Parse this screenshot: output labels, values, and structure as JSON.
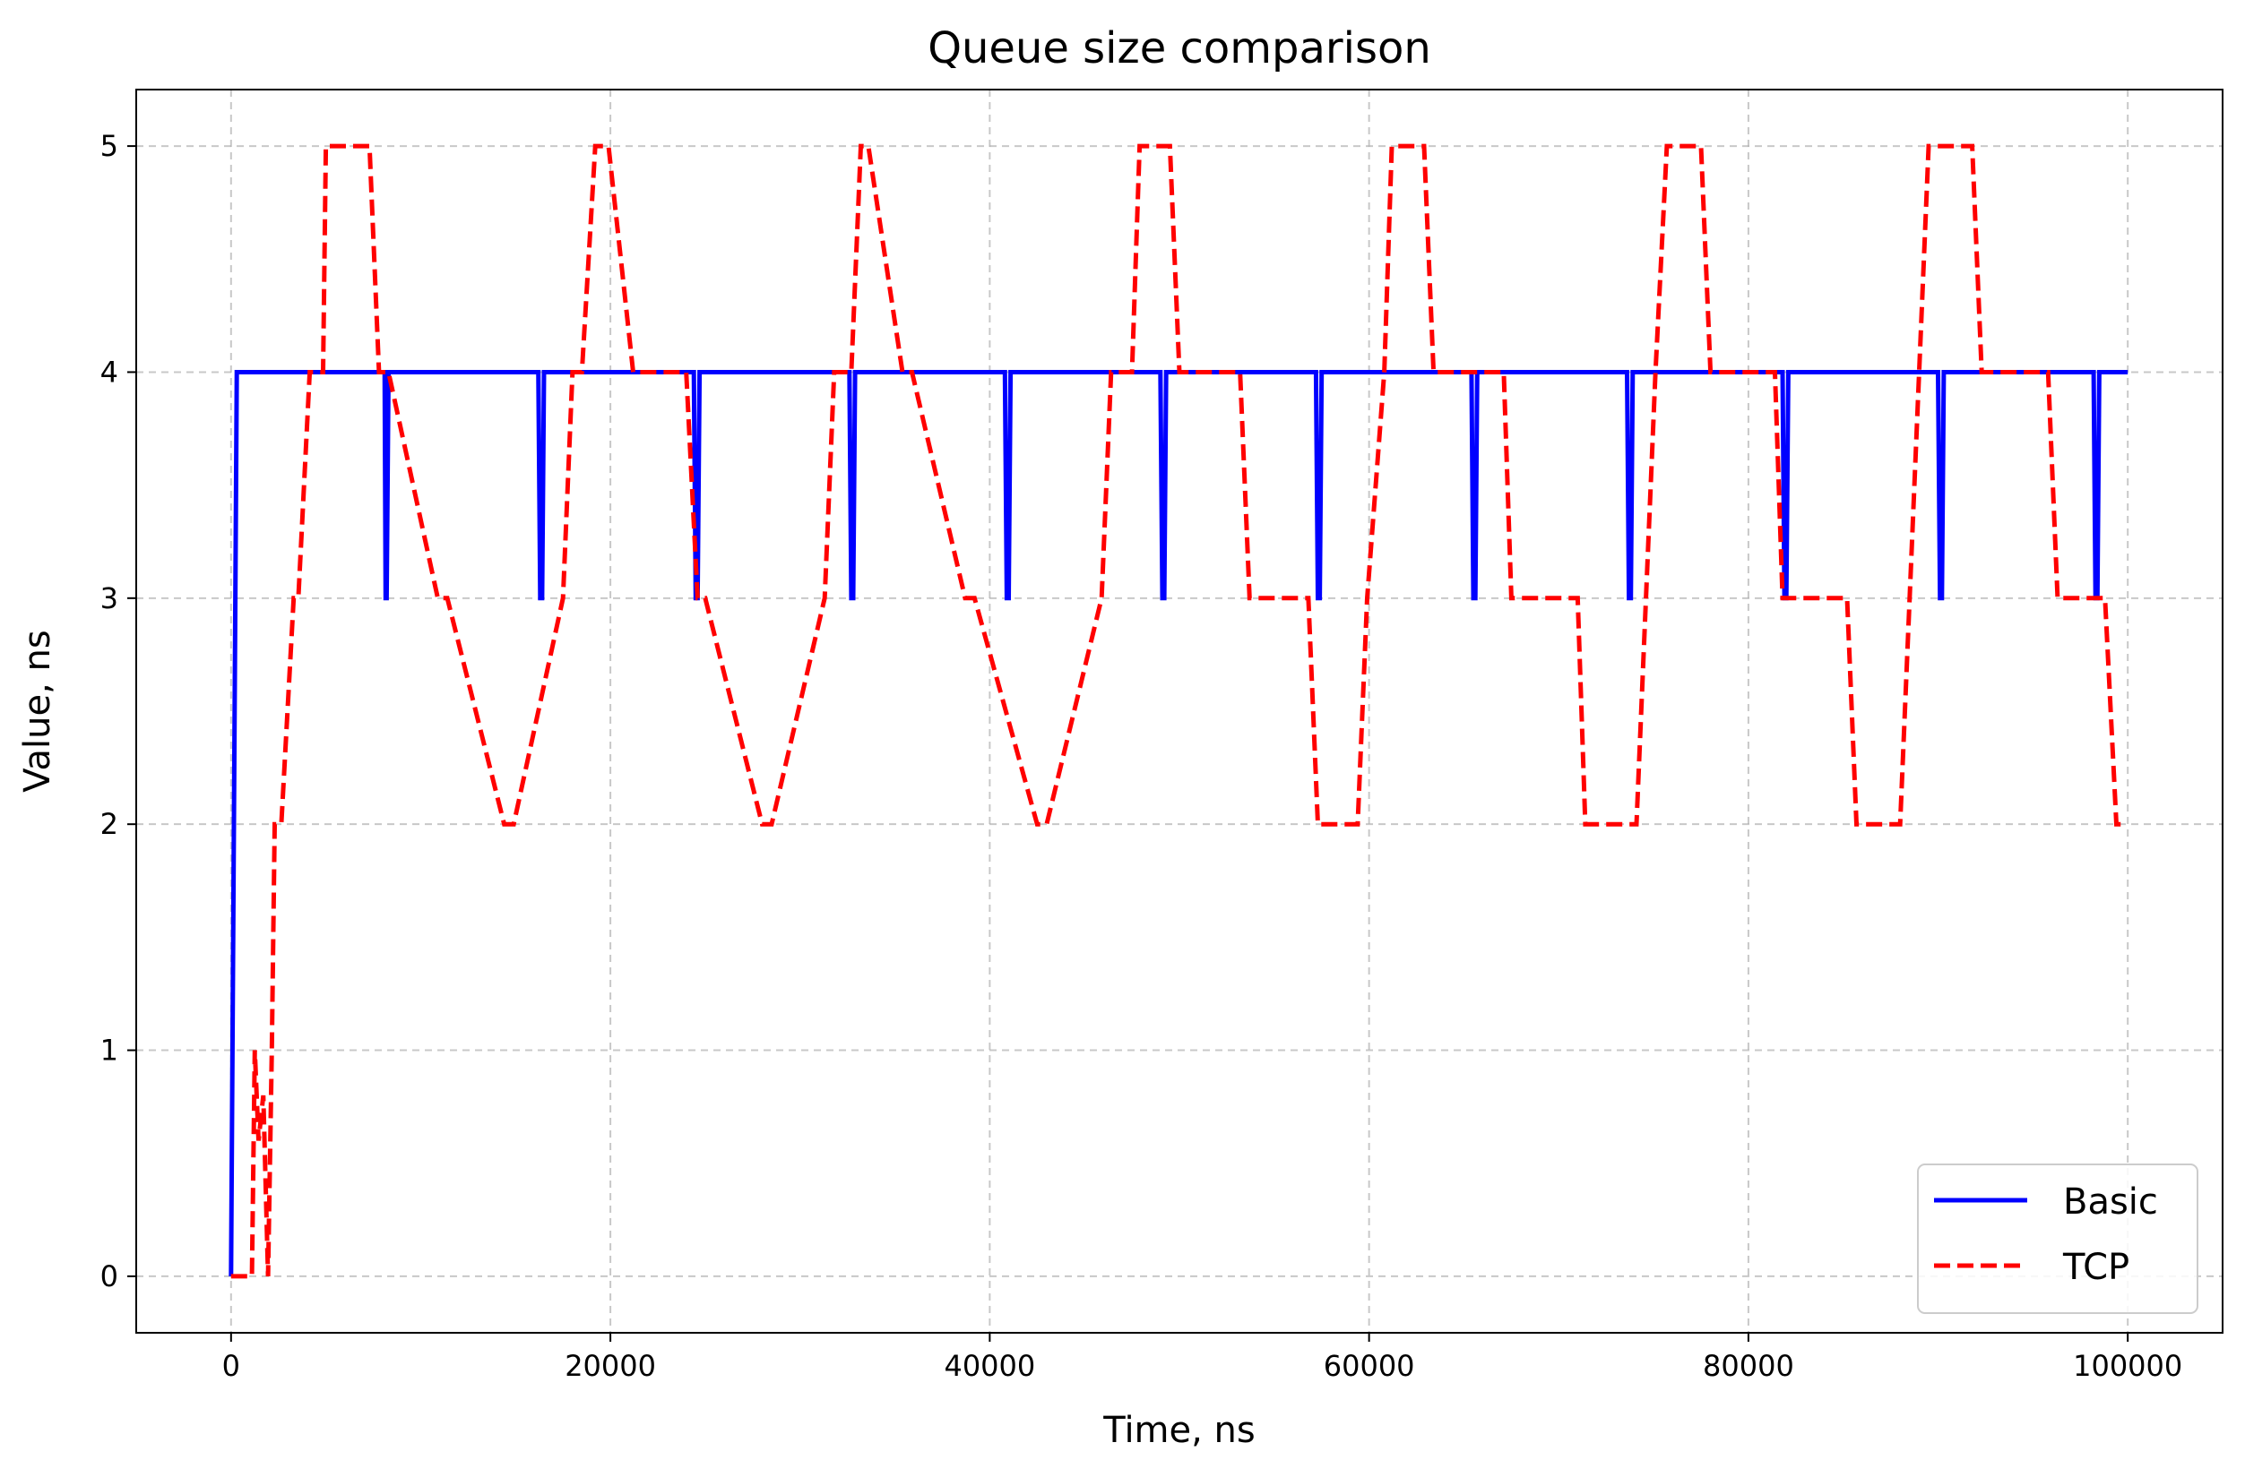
{
  "chart_data": {
    "type": "line",
    "title": "Queue size comparison",
    "xlabel": "Time, ns",
    "ylabel": "Value, ns",
    "xlim": [
      -5000,
      105000
    ],
    "ylim": [
      -0.25,
      5.25
    ],
    "xticks": [
      0,
      20000,
      40000,
      60000,
      80000,
      100000
    ],
    "yticks": [
      0,
      1,
      2,
      3,
      4,
      5
    ],
    "grid": true,
    "legend_position": "lower right",
    "series": [
      {
        "name": "Basic",
        "color": "#0000ff",
        "style": "solid",
        "x": [
          0,
          300,
          400,
          8100,
          8150,
          8200,
          8300,
          16200,
          16300,
          16400,
          16500,
          24400,
          24500,
          24600,
          24700,
          32600,
          32700,
          32800,
          32900,
          40800,
          40900,
          41000,
          41100,
          49000,
          49100,
          49200,
          49300,
          57200,
          57300,
          57400,
          57500,
          65400,
          65500,
          65600,
          65700,
          73600,
          73700,
          73800,
          73900,
          81800,
          81900,
          82000,
          82100,
          90000,
          90100,
          90200,
          90300,
          98200,
          98300,
          98400,
          98500,
          100000
        ],
        "y": [
          0,
          4,
          4,
          4,
          3,
          3,
          4,
          4,
          3,
          3,
          4,
          4,
          3,
          3,
          4,
          4,
          3,
          3,
          4,
          4,
          3,
          3,
          4,
          4,
          3,
          3,
          4,
          4,
          3,
          3,
          4,
          4,
          3,
          3,
          4,
          4,
          3,
          3,
          4,
          4,
          3,
          3,
          4,
          4,
          3,
          3,
          4,
          4,
          3,
          3,
          4,
          4
        ]
      },
      {
        "name": "TCP",
        "color": "#ff0000",
        "style": "dashed",
        "x": [
          0,
          1100,
          1250,
          1450,
          1700,
          1950,
          2150,
          2300,
          2650,
          3300,
          3550,
          4150,
          4400,
          4850,
          5000,
          7300,
          7800,
          8300,
          10900,
          11400,
          14400,
          14900,
          17500,
          18000,
          18500,
          19200,
          19900,
          21200,
          21600,
          24000,
          24600,
          25000,
          28000,
          28500,
          31300,
          31800,
          32700,
          33200,
          33600,
          35400,
          35900,
          38700,
          39200,
          42500,
          43000,
          45900,
          46400,
          47500,
          47900,
          49500,
          50000,
          53200,
          53700,
          56800,
          57300,
          59400,
          59900,
          60800,
          61200,
          62900,
          63400,
          67100,
          67500,
          71000,
          71400,
          74100,
          74600,
          75100,
          75700,
          77500,
          78000,
          81400,
          81800,
          85200,
          85700,
          88000,
          88500,
          89000,
          89500,
          91800,
          92300,
          95800,
          96300,
          98800,
          99400,
          100000
        ],
        "y": [
          0,
          0,
          1,
          0.6,
          0.8,
          0,
          1,
          2,
          2,
          3,
          3,
          4,
          4,
          4,
          5,
          5,
          4,
          4,
          3,
          3,
          2,
          2,
          3,
          4,
          4,
          5,
          5,
          4,
          4,
          4,
          3,
          3,
          2,
          2,
          3,
          4,
          4,
          5,
          5,
          4,
          4,
          3,
          3,
          2,
          2,
          3,
          4,
          4,
          5,
          5,
          4,
          4,
          3,
          3,
          2,
          2,
          3,
          4,
          5,
          5,
          4,
          4,
          3,
          3,
          2,
          2,
          3,
          4,
          5,
          5,
          4,
          4,
          3,
          3,
          2,
          2,
          3,
          4,
          5,
          5,
          4,
          4,
          3,
          3,
          2,
          2
        ]
      }
    ]
  }
}
